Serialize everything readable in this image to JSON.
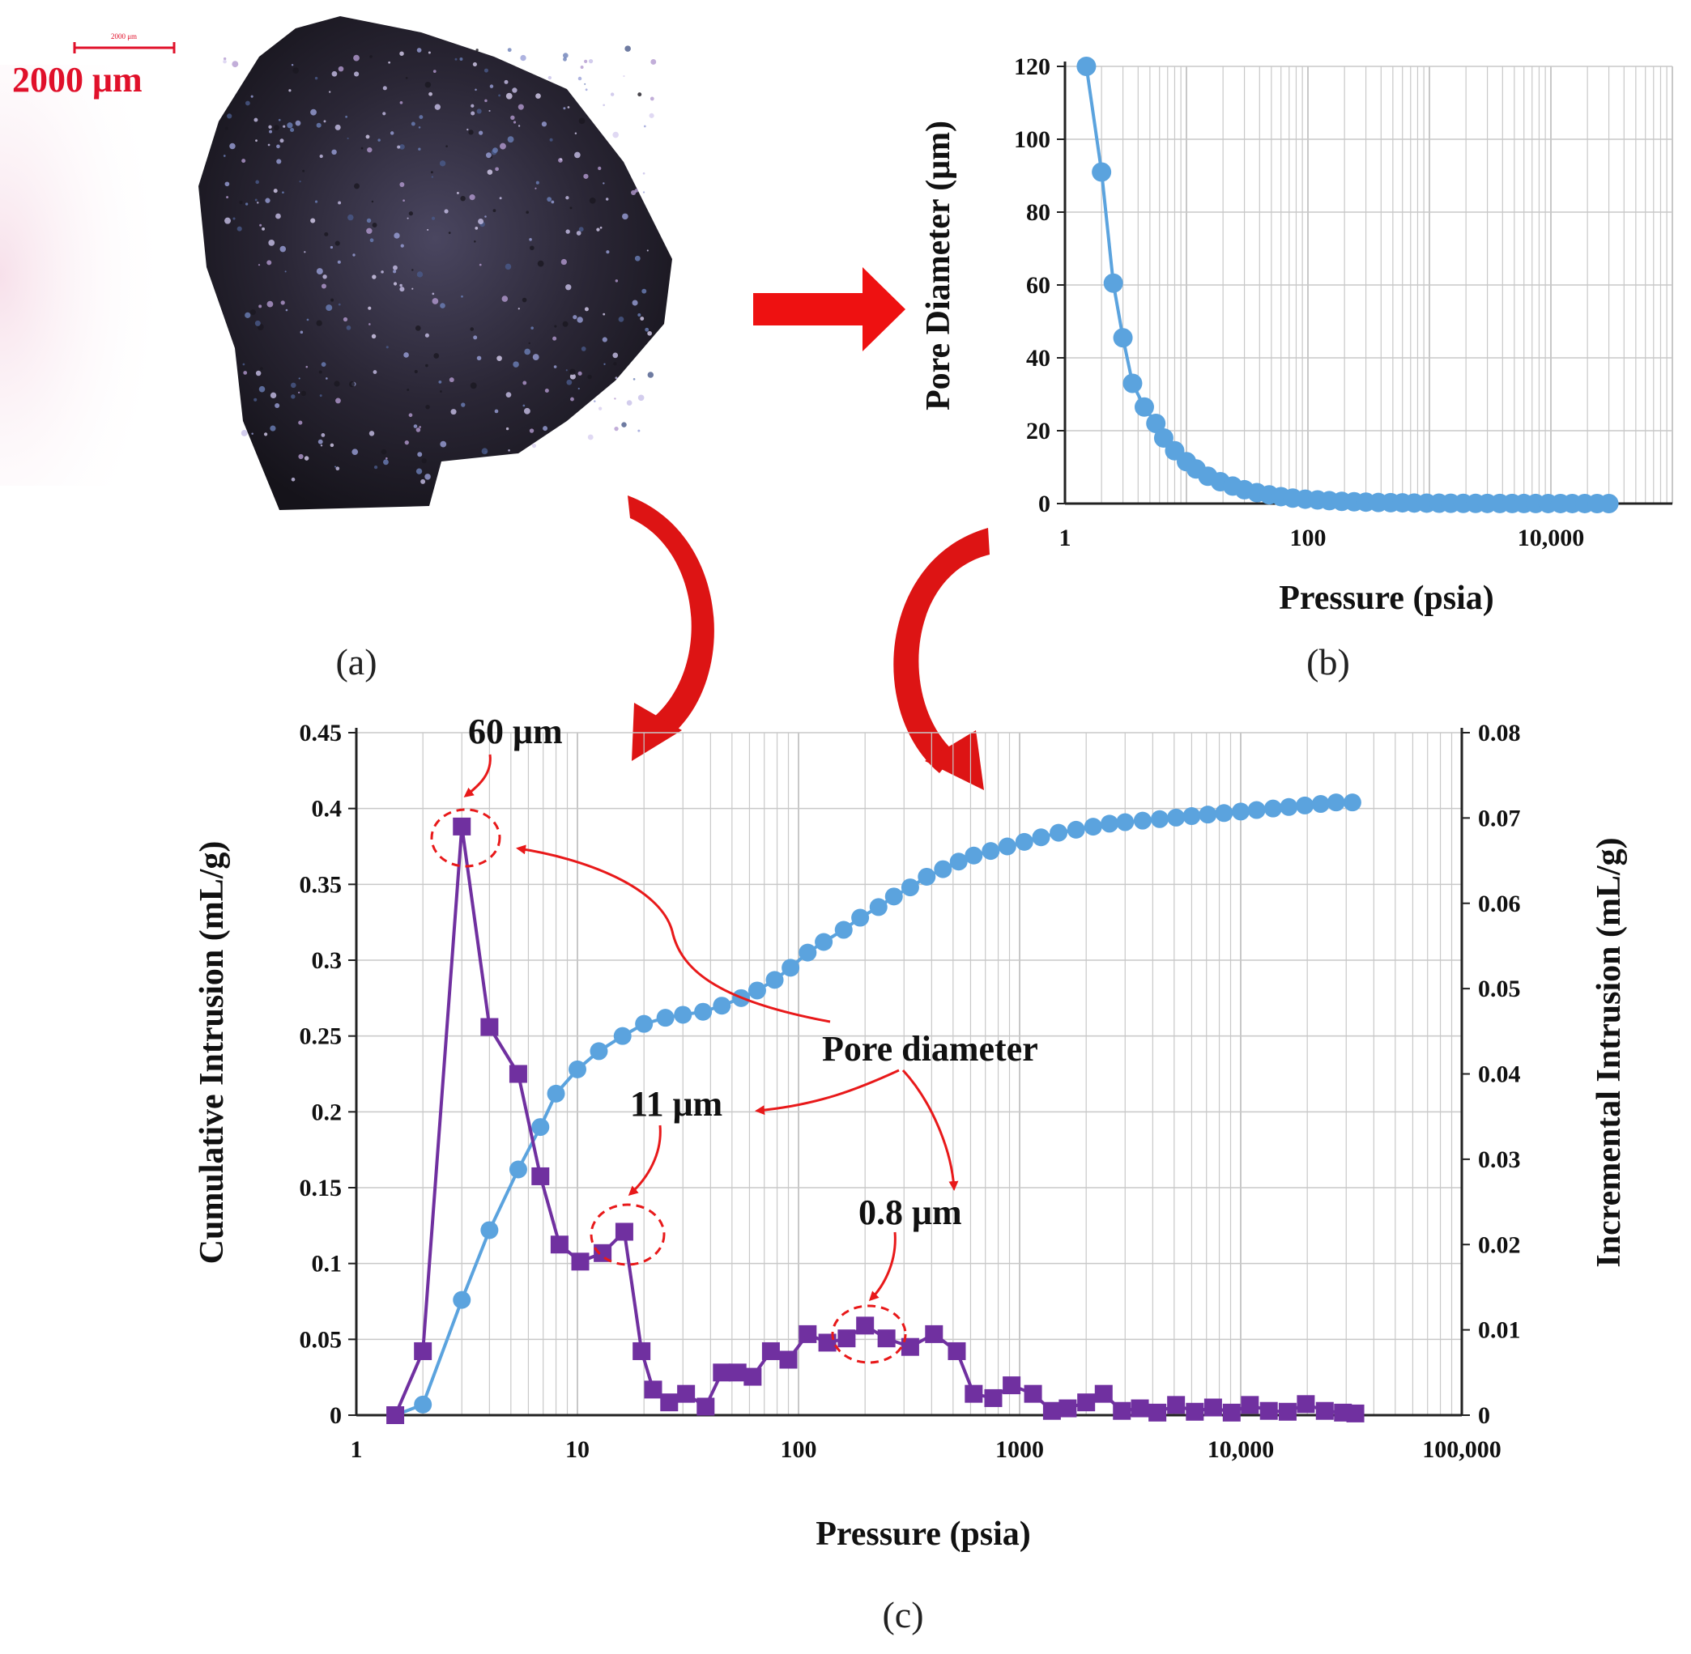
{
  "panels": {
    "a": "(a)",
    "b": "(b)",
    "c": "(c)"
  },
  "photo": {
    "scale_bar_small": "2000 μm",
    "scale_bar_label": "2000 μm"
  },
  "colors": {
    "arrow": "#ee1111",
    "series_blue": "#5ba3de",
    "series_purple": "#7030a0",
    "grid": "#c8c8c8",
    "annotation": "#e8191a"
  },
  "chart_data": [
    {
      "id": "b",
      "type": "scatter",
      "title": "",
      "xlabel": "Pressure  (psia)",
      "ylabel": "Pore Diameter  (μm)",
      "x_scale": "log",
      "xlim": [
        1,
        100000
      ],
      "ylim": [
        0,
        120
      ],
      "x_ticks": [
        1,
        100,
        10000
      ],
      "x_tick_labels": [
        "1",
        "100",
        "10,000"
      ],
      "y_ticks": [
        0,
        20,
        40,
        60,
        80,
        100,
        120
      ],
      "y_tick_labels": [
        "0",
        "20",
        "40",
        "60",
        "80",
        "100",
        "120"
      ],
      "grid": true,
      "series": [
        {
          "x": [
            1.5,
            2,
            2.5,
            3,
            3.6,
            4.5,
            5.6,
            6.5,
            8,
            10,
            12,
            15,
            19,
            24,
            30,
            38,
            48,
            60,
            75,
            95,
            120,
            150,
            190,
            240,
            300,
            380,
            480,
            600,
            750,
            950,
            1200,
            1500,
            1900,
            2400,
            3000,
            3800,
            4800,
            6000,
            7500,
            9500,
            12000,
            15000,
            19000,
            24000,
            30000
          ],
          "y": [
            120,
            91,
            60.5,
            45.5,
            33,
            26.5,
            22,
            18,
            14.5,
            11.5,
            9.5,
            7.5,
            6,
            4.8,
            3.8,
            3,
            2.4,
            1.9,
            1.5,
            1.2,
            1,
            0.8,
            0.6,
            0.5,
            0.4,
            0.3,
            0.25,
            0.2,
            0.15,
            0.12,
            0.1,
            0.08,
            0.06,
            0.05,
            0.04,
            0.03,
            0.025,
            0.02,
            0.015,
            0.012,
            0.01,
            0.008,
            0.006,
            0.005,
            0.004
          ]
        }
      ]
    },
    {
      "id": "c",
      "type": "line",
      "title": "",
      "xlabel": "Pressure (psia)",
      "ylabel_left": "Cumulative Intrusion (mL/g)",
      "ylabel_right": "Incremental Intrusion (mL/g)",
      "x_scale": "log",
      "xlim": [
        1,
        100000
      ],
      "ylim_left": [
        0,
        0.45
      ],
      "ylim_right": [
        0,
        0.08
      ],
      "x_ticks": [
        1,
        10,
        100,
        1000,
        10000,
        100000
      ],
      "x_tick_labels": [
        "1",
        "10",
        "100",
        "1000",
        "10,000",
        "100,000"
      ],
      "y_left_ticks": [
        0,
        0.05,
        0.1,
        0.15,
        0.2,
        0.25,
        0.3,
        0.35,
        0.4,
        0.45
      ],
      "y_left_tick_labels": [
        "0",
        "0.05",
        "0.1",
        "0.15",
        "0.2",
        "0.25",
        "0.3",
        "0.35",
        "0.4",
        "0.45"
      ],
      "y_right_ticks": [
        0,
        0.01,
        0.02,
        0.03,
        0.04,
        0.05,
        0.06,
        0.07,
        0.08
      ],
      "y_right_tick_labels": [
        "0",
        "0.01",
        "0.02",
        "0.03",
        "0.04",
        "0.05",
        "0.06",
        "0.07",
        "0.08"
      ],
      "grid": true,
      "series": [
        {
          "axis": "left",
          "marker": "circle",
          "x": [
            1.5,
            2,
            3,
            4,
            5.4,
            6.8,
            8,
            10,
            12.5,
            16,
            20,
            25,
            30,
            37,
            45,
            55,
            65,
            78,
            92,
            110,
            130,
            160,
            190,
            230,
            270,
            320,
            380,
            450,
            530,
            620,
            740,
            880,
            1050,
            1250,
            1500,
            1800,
            2150,
            2550,
            3000,
            3600,
            4300,
            5100,
            6000,
            7100,
            8400,
            10000,
            11800,
            14000,
            16500,
            19500,
            23000,
            27000,
            32000
          ],
          "y": [
            0,
            0.007,
            0.076,
            0.122,
            0.162,
            0.19,
            0.212,
            0.228,
            0.24,
            0.25,
            0.258,
            0.262,
            0.264,
            0.266,
            0.27,
            0.275,
            0.28,
            0.287,
            0.295,
            0.305,
            0.312,
            0.32,
            0.328,
            0.335,
            0.342,
            0.348,
            0.355,
            0.36,
            0.365,
            0.369,
            0.372,
            0.375,
            0.378,
            0.381,
            0.384,
            0.386,
            0.388,
            0.39,
            0.391,
            0.392,
            0.393,
            0.394,
            0.395,
            0.396,
            0.397,
            0.398,
            0.399,
            0.4,
            0.401,
            0.402,
            0.403,
            0.404,
            0.404
          ]
        },
        {
          "axis": "right",
          "marker": "square",
          "x": [
            1.5,
            2,
            3,
            4,
            5.4,
            6.8,
            8.3,
            10.3,
            13,
            16.3,
            19.5,
            22,
            26,
            31,
            38,
            45,
            53,
            62,
            75,
            90,
            110,
            135,
            165,
            200,
            250,
            320,
            410,
            520,
            620,
            760,
            920,
            1150,
            1400,
            1650,
            2000,
            2400,
            2900,
            3500,
            4200,
            5100,
            6200,
            7500,
            9100,
            11000,
            13400,
            16300,
            19700,
            24000,
            29000,
            33000
          ],
          "y": [
            0,
            0.0075,
            0.069,
            0.0455,
            0.04,
            0.028,
            0.02,
            0.018,
            0.019,
            0.0215,
            0.0075,
            0.003,
            0.0015,
            0.0025,
            0.001,
            0.005,
            0.005,
            0.0045,
            0.0075,
            0.0065,
            0.0095,
            0.0085,
            0.009,
            0.0105,
            0.009,
            0.008,
            0.0095,
            0.0075,
            0.0025,
            0.002,
            0.0035,
            0.0025,
            0.0005,
            0.0008,
            0.0015,
            0.0025,
            0.0005,
            0.0008,
            0.0003,
            0.0012,
            0.0004,
            0.0009,
            0.0003,
            0.0012,
            0.0005,
            0.0004,
            0.0013,
            0.0005,
            0.0003,
            0.0002
          ]
        }
      ],
      "annotations": {
        "pore_diameter": "Pore diameter",
        "d60": "60 μm",
        "d11": "11 μm",
        "d08": "0.8 μm"
      }
    }
  ]
}
